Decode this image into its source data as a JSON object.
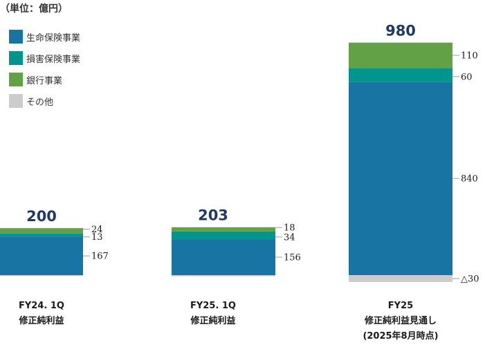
{
  "unit_label": "（単位：億円）",
  "legend": [
    {
      "name": "生命保険事業",
      "color": "#1874a3"
    },
    {
      "name": "損害保険事業",
      "color": "#00968f"
    },
    {
      "name": "銀行事業",
      "color": "#62a146"
    },
    {
      "name": "その他",
      "color": "#cccccc"
    }
  ],
  "chart_data": {
    "type": "bar",
    "stacked": true,
    "title": "",
    "unit": "億円",
    "categories": [
      {
        "lines": [
          "FY24. 1Q",
          "修正純利益"
        ]
      },
      {
        "lines": [
          "FY25. 1Q",
          "修正純利益"
        ]
      },
      {
        "lines": [
          "FY25",
          "修正純利益見通し",
          "(2025年8月時点)"
        ]
      }
    ],
    "totals": [
      "200",
      "203",
      "980"
    ],
    "series": [
      {
        "name": "その他",
        "color": "#cccccc",
        "values": [
          -4,
          -5,
          -30
        ],
        "labels": [
          "",
          "",
          "△30"
        ]
      },
      {
        "name": "生命保険事業",
        "color": "#1874a3",
        "values": [
          167,
          156,
          840
        ],
        "labels": [
          "167",
          "156",
          "840"
        ]
      },
      {
        "name": "損害保険事業",
        "color": "#00968f",
        "values": [
          13,
          34,
          60
        ],
        "labels": [
          "13",
          "34",
          "60"
        ]
      },
      {
        "name": "銀行事業",
        "color": "#62a146",
        "values": [
          24,
          18,
          110
        ],
        "labels": [
          "24",
          "18",
          "110"
        ]
      }
    ]
  }
}
